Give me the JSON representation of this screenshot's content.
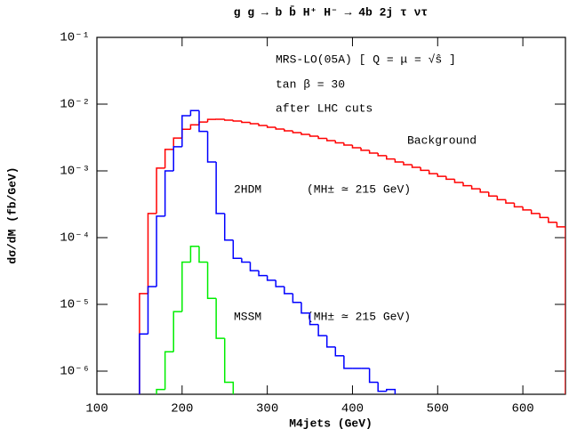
{
  "chart_data": {
    "type": "histogram",
    "title": "g g → b b̄ H⁺ H⁻ → 4b 2j τ ντ",
    "x_label": "M4jets (GeV)",
    "y_label": "dσ/dM (fb/GeV)",
    "log_y": true,
    "xlim": [
      100,
      650
    ],
    "ylim": [
      4.5e-07,
      0.1
    ],
    "xticks": [
      100,
      200,
      300,
      400,
      500,
      600
    ],
    "yticks": [
      {
        "value": 0.1,
        "label": "10⁻¹"
      },
      {
        "value": 0.01,
        "label": "10⁻²"
      },
      {
        "value": 0.001,
        "label": "10⁻³"
      },
      {
        "value": 0.0001,
        "label": "10⁻⁴"
      },
      {
        "value": 1e-05,
        "label": "10⁻⁵"
      },
      {
        "value": 1e-06,
        "label": "10⁻⁶"
      }
    ],
    "annotations": [
      "MRS-LO(05A) [ Q = μ = √ŝ ]",
      "tan β = 30",
      "after LHC cuts",
      "(MH± ≃ 215 GeV)",
      "(MH± ≃ 215 GeV)"
    ],
    "series": [
      {
        "name": "Background",
        "color": "#ff0000",
        "bins": [
          150,
          160,
          170,
          180,
          190,
          200,
          210,
          220,
          230,
          240,
          250,
          260,
          270,
          280,
          290,
          300,
          310,
          320,
          330,
          340,
          350,
          360,
          370,
          380,
          390,
          400,
          410,
          420,
          430,
          440,
          450,
          460,
          470,
          480,
          490,
          500,
          510,
          520,
          530,
          540,
          550,
          560,
          570,
          580,
          590,
          600,
          610,
          620,
          630,
          640,
          650
        ],
        "values": [
          1.45e-05,
          0.00023,
          0.0011,
          0.0021,
          0.0031,
          0.0042,
          0.0049,
          0.0054,
          0.0059,
          0.00593,
          0.00575,
          0.00558,
          0.00533,
          0.00509,
          0.00479,
          0.0045,
          0.00423,
          0.00398,
          0.00374,
          0.00352,
          0.00331,
          0.00307,
          0.00284,
          0.00263,
          0.00244,
          0.00222,
          0.00203,
          0.00185,
          0.00169,
          0.00151,
          0.00136,
          0.00124,
          0.00113,
          0.00102,
          0.00091,
          0.00083,
          0.00075,
          0.00067,
          0.0006,
          0.00054,
          0.00048,
          0.00042,
          0.00037,
          0.00033,
          0.00029,
          0.00026,
          0.00023,
          0.0002,
          0.00017,
          0.000145
        ]
      },
      {
        "name": "2HDM",
        "color": "#0000ff",
        "bins": [
          150,
          160,
          170,
          180,
          190,
          200,
          210,
          220,
          230,
          240,
          250,
          260,
          270,
          280,
          290,
          300,
          310,
          320,
          330,
          340,
          350,
          360,
          370,
          380,
          390,
          400,
          410,
          420,
          430,
          440,
          450
        ],
        "values": [
          3.6e-06,
          1.85e-05,
          0.00021,
          0.001,
          0.0023,
          0.0067,
          0.008,
          0.0039,
          0.00136,
          0.00023,
          9.2e-05,
          4.9e-05,
          4.3e-05,
          3.2e-05,
          2.7e-05,
          2.3e-05,
          1.85e-05,
          1.45e-05,
          1.07e-05,
          7.4e-06,
          5e-06,
          3.4e-06,
          2.3e-06,
          1.7e-06,
          1.1e-06,
          1.1e-06,
          1.1e-06,
          6.8e-07,
          5e-07,
          5.3e-07
        ]
      },
      {
        "name": "MSSM",
        "color": "#00ee00",
        "bins": [
          170,
          180,
          190,
          200,
          210,
          220,
          230,
          240,
          250,
          260
        ],
        "values": [
          5.3e-07,
          1.95e-06,
          7.8e-06,
          4.3e-05,
          7.4e-05,
          4.3e-05,
          1.23e-05,
          3.1e-06,
          6.8e-07
        ]
      }
    ]
  }
}
